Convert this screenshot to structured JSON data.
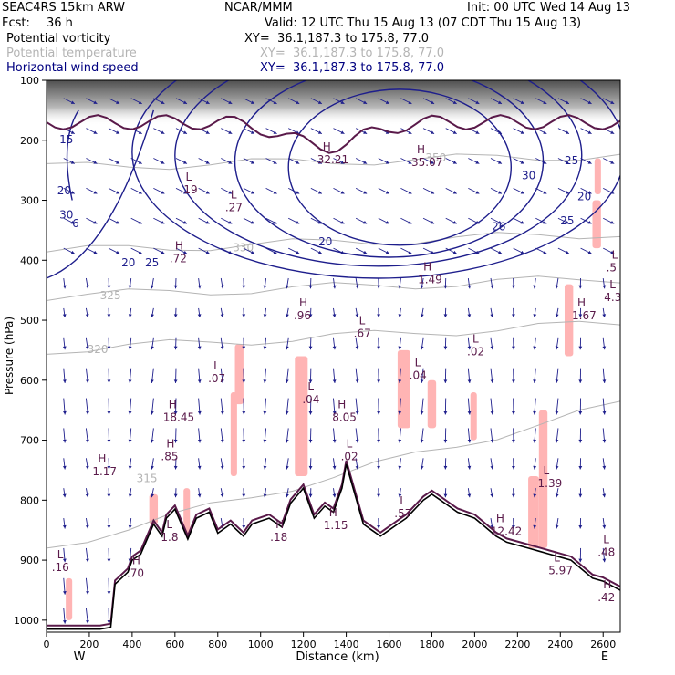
{
  "header": {
    "model": "SEAC4RS 15km ARW",
    "center": "NCAR/MMM",
    "init": "Init: 00 UTC Wed 14 Aug 13",
    "fcst_label": "Fcst:",
    "fcst_value": "36 h",
    "valid": "Valid: 12 UTC Thu 15 Aug 13 (07 CDT Thu 15 Aug 13)",
    "fields": [
      {
        "name": "Potential vorticity",
        "xy": "XY=  36.1,187.3 to 175.8, 77.0",
        "color": "#000000"
      },
      {
        "name": "Potential temperature",
        "xy": "XY=  36.1,187.3 to 175.8, 77.0",
        "color": "#b4b4b4"
      },
      {
        "name": "Horizontal wind speed",
        "xy": "XY=  36.1,187.3 to 175.8, 77.0",
        "color": "#000080"
      }
    ]
  },
  "chart_data": {
    "type": "line",
    "xlabel": "Distance (km)",
    "ylabel": "Pressure (hPa)",
    "xlim": [
      0,
      2680
    ],
    "ylim": [
      1020,
      100
    ],
    "x_ticks": [
      0,
      200,
      400,
      600,
      800,
      1000,
      1200,
      1400,
      1600,
      1800,
      2000,
      2200,
      2400,
      2600
    ],
    "y_ticks": [
      100,
      200,
      300,
      400,
      500,
      600,
      700,
      800,
      900,
      1000
    ],
    "endpoints": {
      "left": "W",
      "right": "E"
    },
    "colors": {
      "potential_temperature": "#b4b4b4",
      "wind_speed": "#1e1e8c",
      "potential_vorticity": "#5a1a4a",
      "pv_shading": "#ffb4b4",
      "wind_vectors": "#1e1e8c",
      "terrain": "#000000"
    },
    "terrain": {
      "x": [
        0,
        150,
        250,
        300,
        320,
        380,
        400,
        440,
        500,
        540,
        560,
        600,
        660,
        700,
        760,
        800,
        860,
        920,
        960,
        1000,
        1040,
        1100,
        1140,
        1200,
        1250,
        1300,
        1340,
        1380,
        1400,
        1440,
        1480,
        1520,
        1560,
        1600,
        1640,
        1680,
        1720,
        1760,
        1800,
        1840,
        1880,
        1920,
        1960,
        2000,
        2050,
        2100,
        2150,
        2200,
        2250,
        2300,
        2350,
        2400,
        2450,
        2500,
        2550,
        2600,
        2680
      ],
      "p": [
        1015,
        1015,
        1015,
        1012,
        940,
        920,
        900,
        890,
        840,
        860,
        830,
        815,
        865,
        830,
        820,
        855,
        840,
        860,
        840,
        835,
        830,
        845,
        805,
        780,
        830,
        810,
        820,
        780,
        740,
        790,
        840,
        850,
        860,
        850,
        840,
        830,
        815,
        800,
        790,
        800,
        810,
        820,
        825,
        830,
        845,
        860,
        870,
        875,
        880,
        885,
        890,
        895,
        900,
        915,
        930,
        935,
        950
      ]
    },
    "theta_contours": [
      {
        "label": "315",
        "p_left": 880,
        "p_right": 640
      },
      {
        "label": "320",
        "p_left": 550,
        "p_right": 505
      },
      {
        "label": "325",
        "p_left": 460,
        "p_right": 430
      },
      {
        "label": "330",
        "p_left": 385,
        "p_right": 355
      },
      {
        "label": "350",
        "p_left": 245,
        "p_right": 225
      }
    ],
    "theta_labels": [
      "315",
      "320",
      "325",
      "330",
      "350"
    ],
    "wind_speed_labels": [
      "15",
      "20",
      "25",
      "30",
      "6",
      "20",
      "20",
      "26",
      "30",
      "25",
      "20",
      "25"
    ],
    "pv_extrema": [
      {
        "type": "L",
        "value": ".16",
        "x": 50,
        "p": 900
      },
      {
        "type": "L",
        "value": ".19",
        "x": 650,
        "p": 270
      },
      {
        "type": "L",
        "value": ".27",
        "x": 860,
        "p": 300
      },
      {
        "type": "H",
        "value": ".72",
        "x": 600,
        "p": 385
      },
      {
        "type": "H",
        "value": ".96",
        "x": 1180,
        "p": 480
      },
      {
        "type": "L",
        "value": ".67",
        "x": 1460,
        "p": 510
      },
      {
        "type": "L",
        "value": ".07",
        "x": 780,
        "p": 585
      },
      {
        "type": "L",
        "value": ".04",
        "x": 1220,
        "p": 620
      },
      {
        "type": "L",
        "value": ".04",
        "x": 1720,
        "p": 580
      },
      {
        "type": "L",
        "value": ".02",
        "x": 1990,
        "p": 540
      },
      {
        "type": "H",
        "value": "18.45",
        "x": 570,
        "p": 650
      },
      {
        "type": "H",
        "value": ".85",
        "x": 560,
        "p": 715
      },
      {
        "type": "H",
        "value": "1.17",
        "x": 240,
        "p": 740
      },
      {
        "type": "H",
        "value": "8.05",
        "x": 1360,
        "p": 650
      },
      {
        "type": "L",
        "value": ".02",
        "x": 1400,
        "p": 715
      },
      {
        "type": "L",
        "value": "1.39",
        "x": 2320,
        "p": 760
      },
      {
        "type": "L",
        "value": ".57",
        "x": 1650,
        "p": 810
      },
      {
        "type": "H",
        "value": "1.15",
        "x": 1320,
        "p": 830
      },
      {
        "type": "H",
        "value": "1.49",
        "x": 1760,
        "p": 420
      },
      {
        "type": "H",
        "value": "1.67",
        "x": 2480,
        "p": 480
      },
      {
        "type": "H",
        "value": "32.21",
        "x": 1290,
        "p": 220
      },
      {
        "type": "H",
        "value": "35.07",
        "x": 1730,
        "p": 225
      },
      {
        "type": "H",
        "value": "12.42",
        "x": 2100,
        "p": 840
      },
      {
        "type": "L",
        "value": "5.97",
        "x": 2370,
        "p": 905
      },
      {
        "type": "L",
        "value": ".48",
        "x": 2600,
        "p": 875
      },
      {
        "type": "H",
        "value": ".42",
        "x": 2600,
        "p": 950
      },
      {
        "type": "L",
        "value": "4.3",
        "x": 2630,
        "p": 450
      },
      {
        "type": "H",
        "value": ".70",
        "x": 400,
        "p": 910
      },
      {
        "type": "L",
        "value": "1.8",
        "x": 560,
        "p": 850
      },
      {
        "type": "H",
        "value": ".18",
        "x": 1070,
        "p": 850
      },
      {
        "type": "L",
        "value": ".5",
        "x": 2640,
        "p": 400
      }
    ]
  }
}
